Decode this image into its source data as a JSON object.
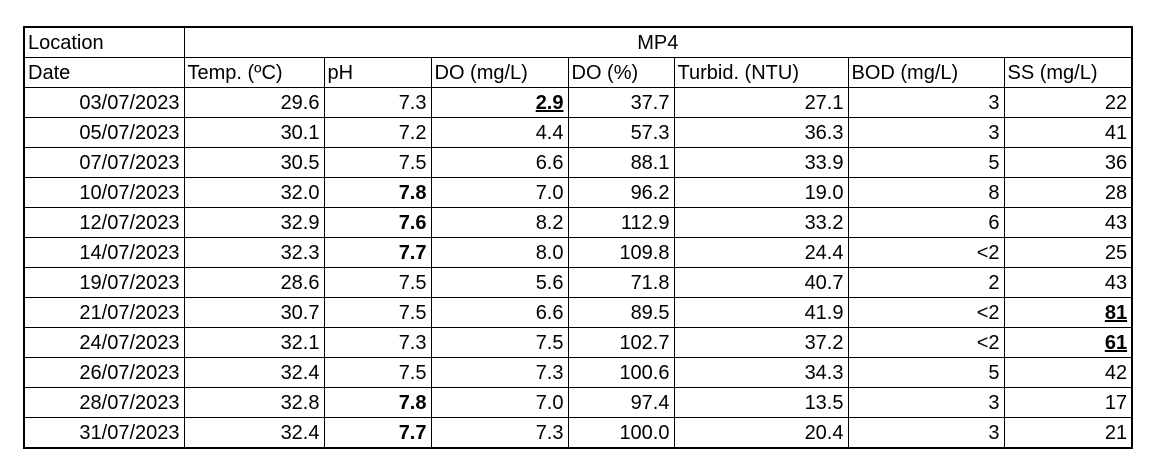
{
  "table": {
    "location_label": "Location",
    "location": "MP4",
    "date_label": "Date",
    "columns": [
      "Temp. (ºC)",
      "pH",
      "DO (mg/L)",
      "DO (%)",
      "Turbid. (NTU)",
      "BOD (mg/L)",
      "SS (mg/L)"
    ],
    "rows": [
      [
        "03/07/2023",
        "29.6",
        "7.3",
        "2.9",
        "37.7",
        "27.1",
        "3",
        "22"
      ],
      [
        "05/07/2023",
        "30.1",
        "7.2",
        "4.4",
        "57.3",
        "36.3",
        "3",
        "41"
      ],
      [
        "07/07/2023",
        "30.5",
        "7.5",
        "6.6",
        "88.1",
        "33.9",
        "5",
        "36"
      ],
      [
        "10/07/2023",
        "32.0",
        "7.8",
        "7.0",
        "96.2",
        "19.0",
        "8",
        "28"
      ],
      [
        "12/07/2023",
        "32.9",
        "7.6",
        "8.2",
        "112.9",
        "33.2",
        "6",
        "43"
      ],
      [
        "14/07/2023",
        "32.3",
        "7.7",
        "8.0",
        "109.8",
        "24.4",
        "<2",
        "25"
      ],
      [
        "19/07/2023",
        "28.6",
        "7.5",
        "5.6",
        "71.8",
        "40.7",
        "2",
        "43"
      ],
      [
        "21/07/2023",
        "30.7",
        "7.5",
        "6.6",
        "89.5",
        "41.9",
        "<2",
        "81"
      ],
      [
        "24/07/2023",
        "32.1",
        "7.3",
        "7.5",
        "102.7",
        "37.2",
        "<2",
        "61"
      ],
      [
        "26/07/2023",
        "32.4",
        "7.5",
        "7.3",
        "100.6",
        "34.3",
        "5",
        "42"
      ],
      [
        "28/07/2023",
        "32.8",
        "7.8",
        "7.0",
        "97.4",
        "13.5",
        "3",
        "17"
      ],
      [
        "31/07/2023",
        "32.4",
        "7.7",
        "7.3",
        "100.0",
        "20.4",
        "3",
        "21"
      ]
    ]
  }
}
